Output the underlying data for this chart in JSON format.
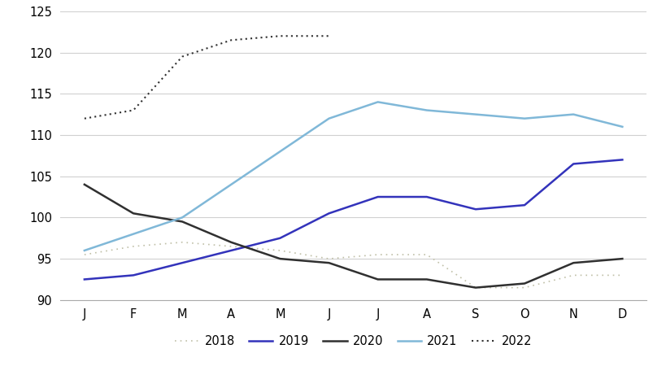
{
  "months": [
    "J",
    "F",
    "M",
    "A",
    "M",
    "J",
    "J",
    "A",
    "S",
    "O",
    "N",
    "D"
  ],
  "series": {
    "2018": [
      95.5,
      96.5,
      97.0,
      96.5,
      96.0,
      95.0,
      95.5,
      95.5,
      91.5,
      91.5,
      93.0,
      93.0
    ],
    "2019": [
      92.5,
      93.0,
      94.5,
      96.0,
      97.5,
      100.5,
      102.5,
      102.5,
      101.0,
      101.5,
      106.5,
      107.0
    ],
    "2020": [
      104.0,
      100.5,
      99.5,
      97.0,
      95.0,
      94.5,
      92.5,
      92.5,
      91.5,
      92.0,
      94.5,
      95.0
    ],
    "2021": [
      96.0,
      98.0,
      100.0,
      104.0,
      108.0,
      112.0,
      114.0,
      113.0,
      112.5,
      112.0,
      112.5,
      111.0
    ],
    "2022": [
      112.0,
      113.0,
      119.5,
      121.5,
      122.0,
      122.0,
      null,
      null,
      null,
      null,
      null,
      null
    ]
  },
  "colors": {
    "2018": "#c0c0a8",
    "2019": "#3333bb",
    "2020": "#303030",
    "2021": "#80b8d8",
    "2022": "#303030"
  },
  "linestyles": {
    "2018": "dotted",
    "2019": "solid",
    "2020": "solid",
    "2021": "solid",
    "2022": "dotted_dense"
  },
  "linewidths": {
    "2018": 1.2,
    "2019": 1.8,
    "2020": 1.8,
    "2021": 1.8,
    "2022": 1.5
  },
  "ylim": [
    90,
    125
  ],
  "yticks": [
    90,
    95,
    100,
    105,
    110,
    115,
    120,
    125
  ],
  "background_color": "#ffffff",
  "grid_color": "#d0d0d0",
  "legend_labels": [
    "2018",
    "2019",
    "2020",
    "2021",
    "2022"
  ]
}
